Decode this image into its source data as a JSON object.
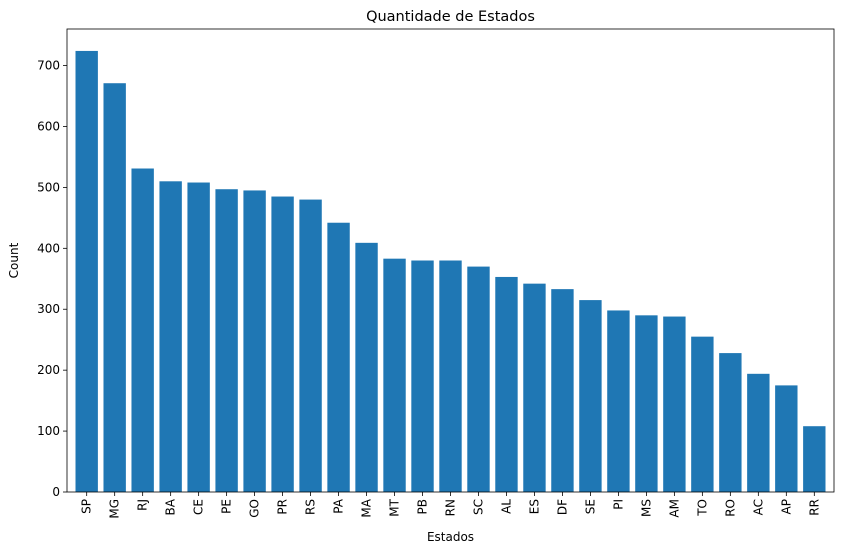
{
  "chart_data": {
    "type": "bar",
    "title": "Quantidade de Estados",
    "xlabel": "Estados",
    "ylabel": "Count",
    "categories": [
      "SP",
      "MG",
      "RJ",
      "BA",
      "CE",
      "PE",
      "GO",
      "PR",
      "RS",
      "PA",
      "MA",
      "MT",
      "PB",
      "RN",
      "SC",
      "AL",
      "ES",
      "DF",
      "SE",
      "PI",
      "MS",
      "AM",
      "TO",
      "RO",
      "AC",
      "AP",
      "RR"
    ],
    "values": [
      724,
      671,
      531,
      510,
      508,
      497,
      495,
      485,
      480,
      442,
      409,
      383,
      380,
      380,
      370,
      353,
      342,
      333,
      315,
      298,
      290,
      288,
      255,
      228,
      194,
      175,
      108
    ],
    "ylim": [
      0,
      760
    ],
    "yticks": [
      0,
      100,
      200,
      300,
      400,
      500,
      600,
      700
    ],
    "grid": false,
    "bar_color": "#1f77b4"
  }
}
